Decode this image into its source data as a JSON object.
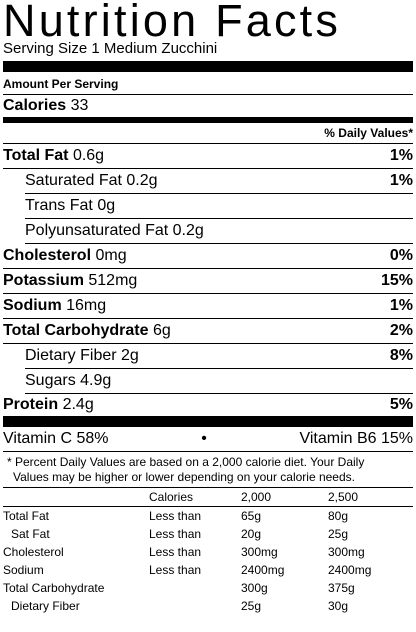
{
  "title": "Nutrition Facts",
  "serving_size": "Serving Size 1 Medium Zucchini",
  "amount_per_serving": "Amount Per Serving",
  "calories": {
    "label": "Calories",
    "value": "33"
  },
  "daily_values_header": "% Daily Values*",
  "nutrients": {
    "total_fat": {
      "label": "Total Fat",
      "amount": "0.6g",
      "pct": "1%"
    },
    "saturated_fat": {
      "label": "Saturated Fat",
      "amount": "0.2g",
      "pct": "1%"
    },
    "trans_fat": {
      "label": "Trans Fat",
      "amount": "0g"
    },
    "polyunsaturated_fat": {
      "label": "Polyunsaturated Fat",
      "amount": "0.2g"
    },
    "cholesterol": {
      "label": "Cholesterol",
      "amount": "0mg",
      "pct": "0%"
    },
    "potassium": {
      "label": "Potassium",
      "amount": "512mg",
      "pct": "15%"
    },
    "sodium": {
      "label": "Sodium",
      "amount": "16mg",
      "pct": "1%"
    },
    "total_carbohydrate": {
      "label": "Total Carbohydrate",
      "amount": "6g",
      "pct": "2%"
    },
    "dietary_fiber": {
      "label": "Dietary Fiber",
      "amount": "2g",
      "pct": "8%"
    },
    "sugars": {
      "label": "Sugars",
      "amount": "4.9g"
    },
    "protein": {
      "label": "Protein",
      "amount": "2.4g",
      "pct": "5%"
    }
  },
  "vitamins": {
    "left": "Vitamin C 58%",
    "bullet": "•",
    "right": "Vitamin B6 15%"
  },
  "footnote": {
    "line1": "* Percent Daily Values are based on a 2,000 calorie diet. Your Daily",
    "line2": "Values may be higher or lower depending on your calorie needs."
  },
  "dv_table": {
    "header": [
      "",
      "Calories",
      "2,000",
      "2,500"
    ],
    "rows": [
      [
        "Total Fat",
        "Less than",
        "65g",
        "80g"
      ],
      [
        "Sat Fat",
        "Less than",
        "20g",
        "25g"
      ],
      [
        "Cholesterol",
        "Less than",
        "300mg",
        "300mg"
      ],
      [
        "Sodium",
        "Less than",
        "2400mg",
        "2400mg"
      ],
      [
        "Total Carbohydrate",
        "",
        "300g",
        "375g"
      ],
      [
        "Dietary Fiber",
        "",
        "25g",
        "30g"
      ]
    ]
  }
}
